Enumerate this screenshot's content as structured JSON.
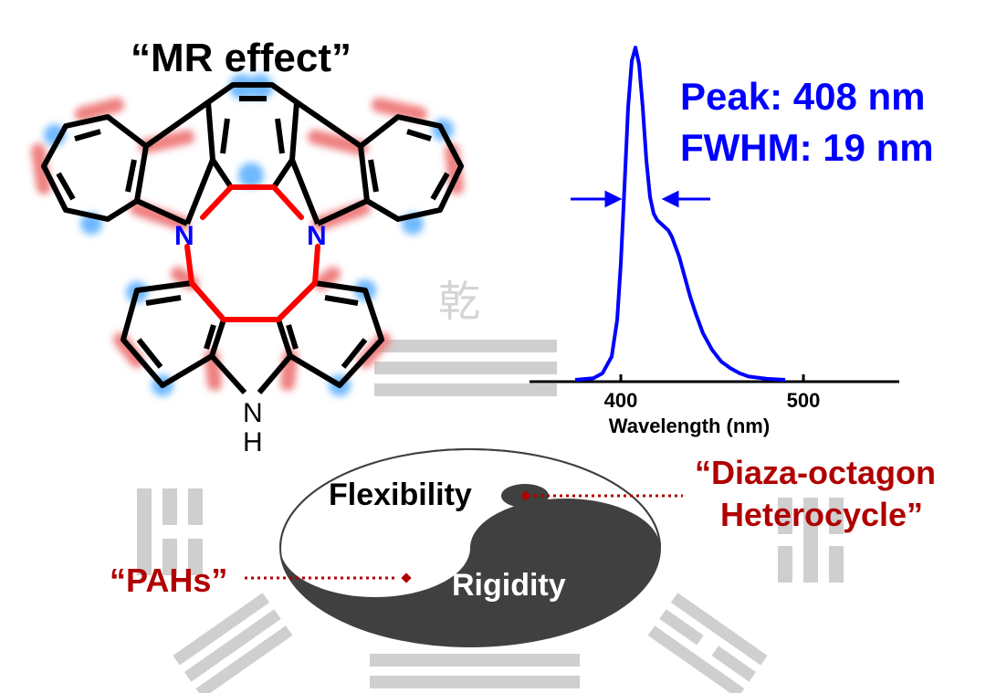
{
  "molecule": {
    "title": "“MR effect”",
    "n_label": "N",
    "nh_label": "NH",
    "h_label": "H",
    "highlight_colors": {
      "red": "#ef8080",
      "blue": "#6fb9ff"
    },
    "bond_color": "#000000",
    "octagon_color": "#ff0000",
    "n_color": "#0000ff"
  },
  "spectrum": {
    "peak_text": "Peak: 408 nm",
    "fwhm_text": "FWHM: 19 nm",
    "xlabel": "Wavelength (nm)",
    "ticks": [
      "400",
      "500"
    ],
    "line_color": "#0000ff"
  },
  "chart_data": {
    "type": "line",
    "title": "",
    "xlabel": "Wavelength (nm)",
    "ylabel": "",
    "xlim": [
      350,
      550
    ],
    "ylim": [
      0,
      1
    ],
    "series": [
      {
        "name": "",
        "x": [
          375,
          385,
          390,
          395,
          398,
          400,
          402,
          404,
          406,
          408,
          410,
          412,
          414,
          416,
          418,
          420,
          422,
          424,
          426,
          428,
          430,
          432,
          435,
          438,
          441,
          445,
          450,
          455,
          460,
          465,
          470,
          480,
          490
        ],
        "y": [
          0,
          0.005,
          0.02,
          0.07,
          0.18,
          0.35,
          0.58,
          0.82,
          0.96,
          1.0,
          0.95,
          0.82,
          0.66,
          0.55,
          0.5,
          0.48,
          0.47,
          0.46,
          0.45,
          0.43,
          0.4,
          0.37,
          0.31,
          0.25,
          0.2,
          0.14,
          0.09,
          0.055,
          0.035,
          0.02,
          0.01,
          0.003,
          0
        ]
      }
    ],
    "annotations": [
      "Peak: 408 nm",
      "FWHM: 19 nm"
    ],
    "grid": false
  },
  "taiji": {
    "flexibility": "Flexibility",
    "rigidity": "Rigidity",
    "diaza_line1": "“Diaza-octagon",
    "diaza_line2": "Heterocycle”",
    "pahs": "“PAHs”",
    "dark_color": "#404040",
    "label_color": "#b00000"
  },
  "background": {
    "trigram_color": "#cfcfcf",
    "glyph_color": "#d4d4d4",
    "top_glyph": "乾"
  }
}
